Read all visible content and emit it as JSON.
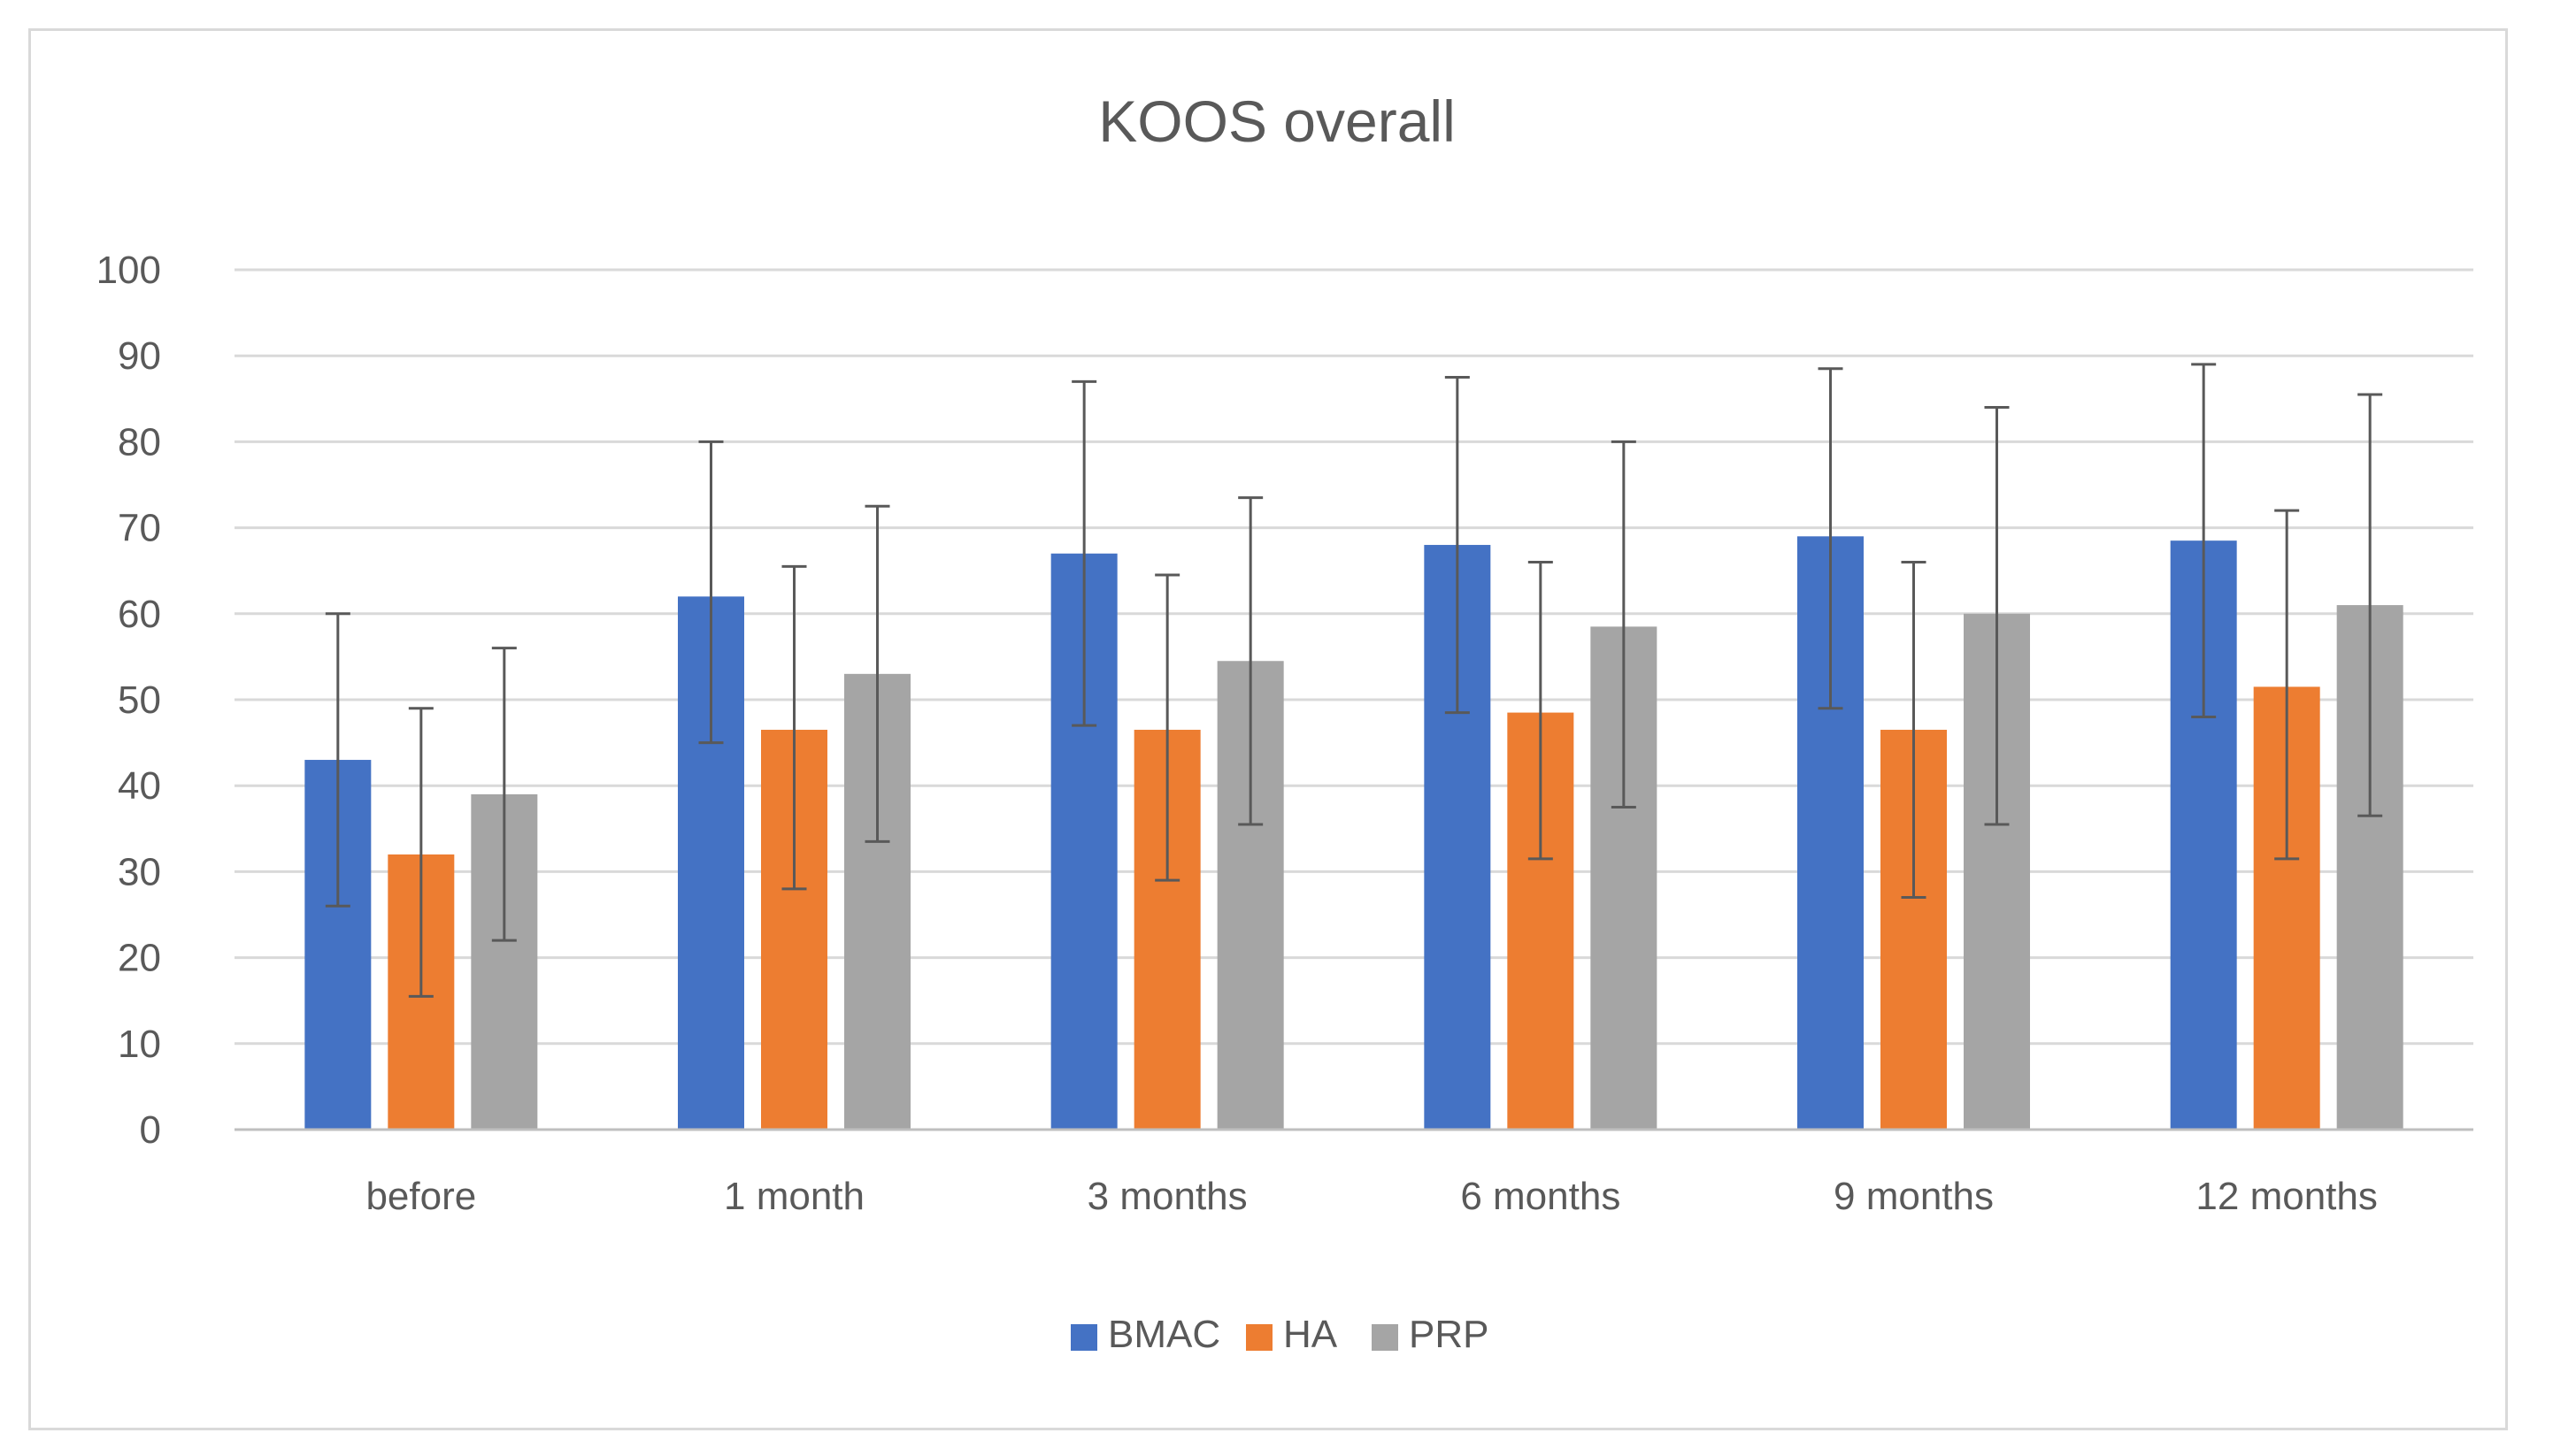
{
  "chart_data": {
    "type": "bar",
    "title": "KOOS overall",
    "xlabel": "",
    "ylabel": "",
    "ylim": [
      0,
      100
    ],
    "yticks": [
      0,
      10,
      20,
      30,
      40,
      50,
      60,
      70,
      80,
      90,
      100
    ],
    "grid": true,
    "legend_position": "bottom",
    "categories": [
      "before",
      "1 month",
      "3 months",
      "6 months",
      "9 months",
      "12 months"
    ],
    "series": [
      {
        "name": "BMAC",
        "color": "#4472c4",
        "values": [
          43,
          62,
          67,
          68,
          69,
          68.5
        ],
        "error_low": [
          26,
          45,
          47,
          48.5,
          49,
          48
        ],
        "error_high": [
          60,
          80,
          87,
          87.5,
          88.5,
          89
        ]
      },
      {
        "name": "HA",
        "color": "#ed7d31",
        "values": [
          32,
          46.5,
          46.5,
          48.5,
          46.5,
          51.5
        ],
        "error_low": [
          15.5,
          28,
          29,
          31.5,
          27,
          31.5
        ],
        "error_high": [
          49,
          65.5,
          64.5,
          66,
          66,
          72
        ]
      },
      {
        "name": "PRP",
        "color": "#a5a5a5",
        "values": [
          39,
          53,
          54.5,
          58.5,
          60,
          61
        ],
        "error_low": [
          22,
          33.5,
          35.5,
          37.5,
          35.5,
          36.5
        ],
        "error_high": [
          56,
          72.5,
          73.5,
          80,
          84,
          85.5
        ]
      }
    ]
  }
}
